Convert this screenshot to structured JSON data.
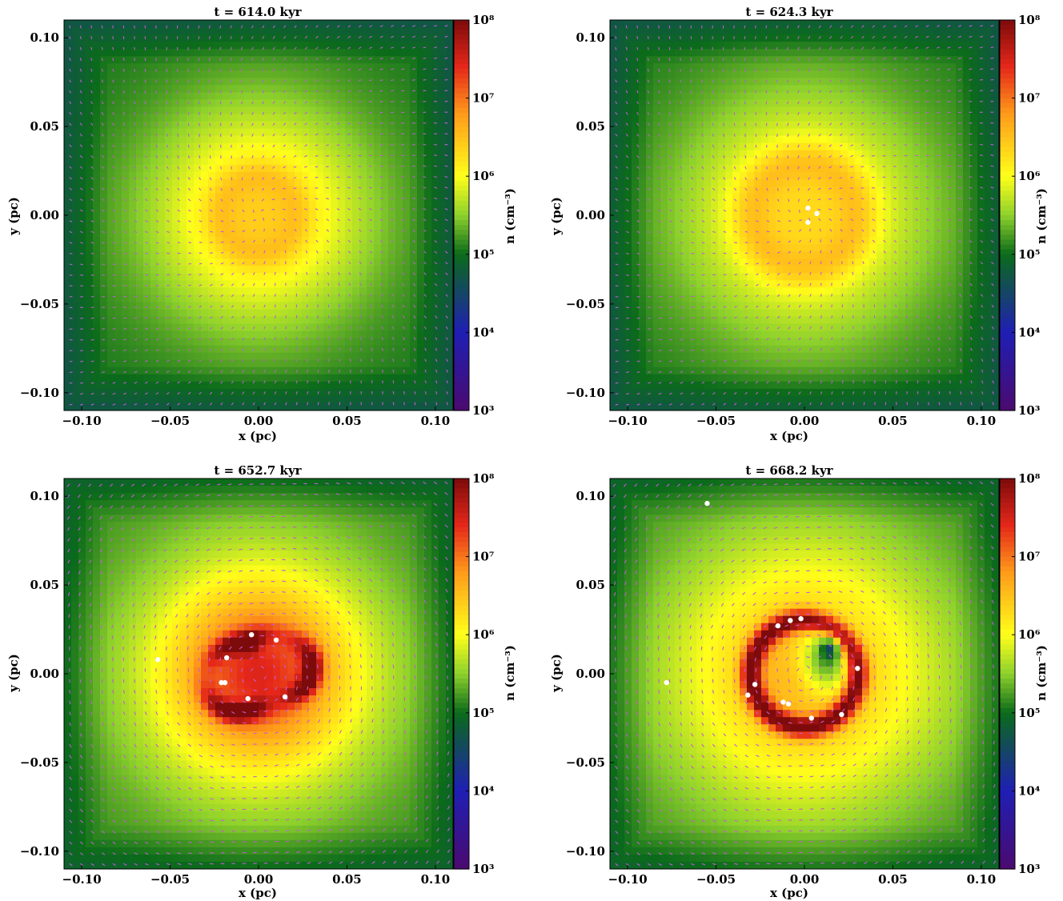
{
  "figure": {
    "x_unit_label": "x (pc)",
    "y_unit_label": "y (pc)",
    "colorbar_label": "n (cm⁻³)"
  },
  "chart_data": [
    {
      "type": "heatmap",
      "title": "t = 614.0 kyr",
      "time_kyr": 614.0,
      "xlabel": "x (pc)",
      "ylabel": "y (pc)",
      "xlim": [
        -0.11,
        0.11
      ],
      "ylim": [
        -0.11,
        0.11
      ],
      "xticks": [
        -0.1,
        -0.05,
        0.0,
        0.05,
        0.1
      ],
      "xtick_labels": [
        "−0.10",
        "−0.05",
        "0.00",
        "0.05",
        "0.10"
      ],
      "yticks": [
        -0.1,
        -0.05,
        0.0,
        0.05,
        0.1
      ],
      "ytick_labels": [
        "−0.10",
        "−0.05",
        "0.00",
        "0.05",
        "0.10"
      ],
      "colorbar": {
        "label": "n (cm⁻³)",
        "scale": "log",
        "range": [
          1000,
          100000000
        ],
        "tick_values": [
          1000,
          10000,
          100000,
          1000000,
          10000000,
          100000000
        ],
        "tick_labels": [
          "10³",
          "10⁴",
          "10⁵",
          "10⁶",
          "10⁷",
          "10⁸"
        ]
      },
      "peak_log_density": 6.6,
      "sink_particles": []
    },
    {
      "type": "heatmap",
      "title": "t = 624.3 kyr",
      "time_kyr": 624.3,
      "xlabel": "x (pc)",
      "ylabel": "y (pc)",
      "xlim": [
        -0.11,
        0.11
      ],
      "ylim": [
        -0.11,
        0.11
      ],
      "xticks": [
        -0.1,
        -0.05,
        0.0,
        0.05,
        0.1
      ],
      "xtick_labels": [
        "−0.10",
        "−0.05",
        "0.00",
        "0.05",
        "0.10"
      ],
      "yticks": [
        -0.1,
        -0.05,
        0.0,
        0.05,
        0.1
      ],
      "ytick_labels": [
        "−0.10",
        "−0.05",
        "0.00",
        "0.05",
        "0.10"
      ],
      "colorbar": {
        "label": "n (cm⁻³)",
        "scale": "log",
        "range": [
          1000,
          100000000
        ],
        "tick_values": [
          1000,
          10000,
          100000,
          1000000,
          10000000,
          100000000
        ],
        "tick_labels": [
          "10³",
          "10⁴",
          "10⁵",
          "10⁶",
          "10⁷",
          "10⁸"
        ]
      },
      "peak_log_density": 6.7,
      "sink_particles": [
        {
          "x": 0.002,
          "y": 0.004
        },
        {
          "x": 0.007,
          "y": 0.001
        },
        {
          "x": 0.002,
          "y": -0.004
        }
      ]
    },
    {
      "type": "heatmap",
      "title": "t = 652.7 kyr",
      "time_kyr": 652.7,
      "xlabel": "x (pc)",
      "ylabel": "y (pc)",
      "xlim": [
        -0.11,
        0.11
      ],
      "ylim": [
        -0.11,
        0.11
      ],
      "xticks": [
        -0.1,
        -0.05,
        0.0,
        0.05,
        0.1
      ],
      "xtick_labels": [
        "−0.10",
        "−0.05",
        "0.00",
        "0.05",
        "0.10"
      ],
      "yticks": [
        -0.1,
        -0.05,
        0.0,
        0.05,
        0.1
      ],
      "ytick_labels": [
        "−0.10",
        "−0.05",
        "0.00",
        "0.05",
        "0.10"
      ],
      "colorbar": {
        "label": "n (cm⁻³)",
        "scale": "log",
        "range": [
          1000,
          100000000
        ],
        "tick_values": [
          1000,
          10000,
          100000,
          1000000,
          10000000,
          100000000
        ],
        "tick_labels": [
          "10³",
          "10⁴",
          "10⁵",
          "10⁶",
          "10⁷",
          "10⁸"
        ]
      },
      "peak_log_density": 7.8,
      "sink_particles": [
        {
          "x": -0.057,
          "y": 0.008
        },
        {
          "x": -0.004,
          "y": 0.022
        },
        {
          "x": 0.01,
          "y": 0.019
        },
        {
          "x": -0.018,
          "y": 0.009
        },
        {
          "x": -0.021,
          "y": -0.005
        },
        {
          "x": -0.019,
          "y": -0.005
        },
        {
          "x": -0.006,
          "y": -0.014
        },
        {
          "x": 0.015,
          "y": -0.013
        }
      ]
    },
    {
      "type": "heatmap",
      "title": "t = 668.2 kyr",
      "time_kyr": 668.2,
      "xlabel": "x (pc)",
      "ylabel": "y (pc)",
      "xlim": [
        -0.11,
        0.11
      ],
      "ylim": [
        -0.11,
        0.11
      ],
      "xticks": [
        -0.1,
        -0.05,
        0.0,
        0.05,
        0.1
      ],
      "xtick_labels": [
        "−0.10",
        "−0.05",
        "0.00",
        "0.05",
        "0.10"
      ],
      "yticks": [
        -0.1,
        -0.05,
        0.0,
        0.05,
        0.1
      ],
      "ytick_labels": [
        "−0.10",
        "−0.05",
        "0.00",
        "0.05",
        "0.10"
      ],
      "colorbar": {
        "label": "n (cm⁻³)",
        "scale": "log",
        "range": [
          1000,
          100000000
        ],
        "tick_values": [
          1000,
          10000,
          100000,
          1000000,
          10000000,
          100000000
        ],
        "tick_labels": [
          "10³",
          "10⁴",
          "10⁵",
          "10⁶",
          "10⁷",
          "10⁸"
        ]
      },
      "peak_log_density": 7.9,
      "sink_particles": [
        {
          "x": -0.055,
          "y": 0.096
        },
        {
          "x": -0.078,
          "y": -0.005
        },
        {
          "x": -0.015,
          "y": 0.027
        },
        {
          "x": -0.008,
          "y": 0.03
        },
        {
          "x": -0.002,
          "y": 0.031
        },
        {
          "x": 0.03,
          "y": 0.003
        },
        {
          "x": -0.028,
          "y": -0.006
        },
        {
          "x": -0.032,
          "y": -0.012
        },
        {
          "x": -0.012,
          "y": -0.016
        },
        {
          "x": -0.009,
          "y": -0.017
        },
        {
          "x": 0.004,
          "y": -0.025
        },
        {
          "x": 0.021,
          "y": -0.023
        }
      ]
    }
  ],
  "colors": {
    "arrow": "#c35ad6",
    "sink": "#ffffff",
    "colormap": [
      "#4b0a6e",
      "#1f1fb4",
      "#0b6b1a",
      "#8ed12c",
      "#ffff1a",
      "#ff9a1a",
      "#e5271a",
      "#7d0b0b"
    ]
  }
}
